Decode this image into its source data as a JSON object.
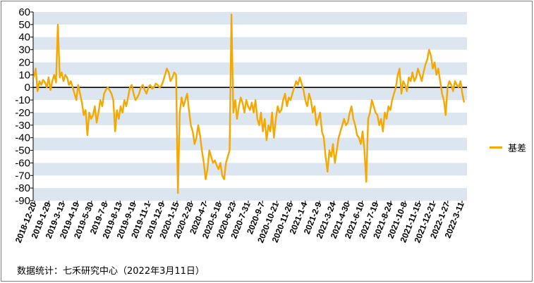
{
  "source": "数据统计：七禾研究中心（2022年3月11日）",
  "chart_data": {
    "type": "line",
    "title": "",
    "xlabel": "",
    "ylabel": "",
    "ylim": [
      -90,
      60
    ],
    "yticks": [
      60,
      50,
      40,
      30,
      20,
      10,
      0,
      -10,
      -20,
      -30,
      -40,
      -50,
      -60,
      -70,
      -80,
      -90
    ],
    "xtick_labels": [
      "2018-12-20",
      "2019-1-29",
      "2019-3-13",
      "2019-4-19",
      "2019-5-30",
      "2019-7-8",
      "2019-8-13",
      "2019-9-19",
      "2019-11-1",
      "2019-12-9",
      "2020-1-15",
      "2020-2-28",
      "2020-4-7",
      "2020-5-18",
      "2020-6-23",
      "2020-7-31",
      "2020-9-7",
      "2020-10-21",
      "2020-11-26",
      "2021-1-4",
      "2021-2-9",
      "2021-3-24",
      "2021-4-30",
      "2021-6-10",
      "2021-7-19",
      "2021-8-24",
      "2021-10-8",
      "2021-11-15",
      "2021-12-21",
      "2022-1-27",
      "2022-3-11"
    ],
    "grid": "alternating horizontal bands",
    "legend_position": "right",
    "colors": {
      "line": "#f5a800",
      "band": "#dce6f1",
      "zero_line": "#000000"
    },
    "series": [
      {
        "name": "基差",
        "values": [
          8,
          15,
          -3,
          5,
          2,
          6,
          4,
          0,
          8,
          -2,
          5,
          10,
          4,
          50,
          8,
          12,
          5,
          10,
          8,
          2,
          5,
          0,
          -5,
          -10,
          2,
          -5,
          -12,
          -22,
          -18,
          -38,
          -20,
          -25,
          -22,
          -15,
          -28,
          -20,
          -10,
          -15,
          -5,
          -2,
          0,
          -2,
          -5,
          -10,
          -35,
          -18,
          -25,
          -15,
          -20,
          -10,
          -15,
          -8,
          0,
          2,
          -5,
          -10,
          -8,
          -5,
          0,
          2,
          -2,
          -5,
          0,
          2,
          -1,
          0,
          3,
          2,
          0,
          1,
          5,
          10,
          15,
          12,
          5,
          8,
          12,
          10,
          -84,
          -20,
          -8,
          -15,
          -10,
          -5,
          -18,
          -30,
          -35,
          -45,
          -40,
          -30,
          -38,
          -50,
          -60,
          -73,
          -65,
          -50,
          -55,
          -60,
          -58,
          -62,
          -65,
          -60,
          -70,
          -73,
          -60,
          -55,
          -50,
          58,
          -20,
          -10,
          -25,
          -15,
          -8,
          -12,
          -20,
          -10,
          -15,
          -18,
          -12,
          -20,
          -10,
          -25,
          -30,
          -20,
          -35,
          -25,
          -42,
          -30,
          -35,
          -20,
          -40,
          -25,
          -15,
          -20,
          -18,
          -10,
          -5,
          -15,
          -8,
          -10,
          -5,
          0,
          5,
          2,
          8,
          3,
          -2,
          -10,
          -15,
          -5,
          -10,
          -20,
          -15,
          -30,
          -25,
          -20,
          -35,
          -40,
          -55,
          -67,
          -50,
          -55,
          -45,
          -60,
          -50,
          -40,
          -35,
          -30,
          -25,
          -30,
          -28,
          -20,
          -15,
          -25,
          -30,
          -38,
          -40,
          -45,
          -35,
          -50,
          -75,
          -25,
          -20,
          -10,
          -15,
          -20,
          -22,
          -30,
          -25,
          -35,
          -20,
          -25,
          -15,
          -18,
          -10,
          -5,
          0,
          10,
          15,
          -5,
          5,
          2,
          -3,
          8,
          5,
          12,
          5,
          8,
          15,
          10,
          5,
          12,
          18,
          22,
          30,
          25,
          15,
          20,
          10,
          15,
          5,
          -5,
          -10,
          -22,
          0,
          5,
          2,
          -3,
          5,
          2,
          0,
          5,
          -5,
          -12
        ]
      }
    ]
  }
}
